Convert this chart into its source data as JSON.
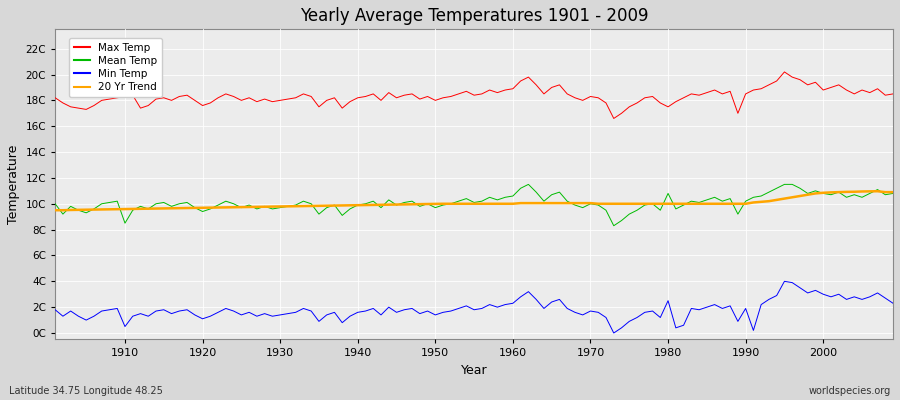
{
  "title": "Yearly Average Temperatures 1901 - 2009",
  "xlabel": "Year",
  "ylabel": "Temperature",
  "x_start": 1901,
  "x_end": 2009,
  "ytick_positions": [
    0,
    2,
    4,
    6,
    8,
    10,
    12,
    14,
    16,
    18,
    20,
    22
  ],
  "ytick_labels": [
    "0C",
    "2C",
    "4C",
    "6C",
    "8C",
    "10C",
    "12C",
    "14C",
    "16C",
    "18C",
    "20C",
    "22C"
  ],
  "ylim": [
    -0.5,
    23.5
  ],
  "xlim": [
    1901,
    2009
  ],
  "xticks": [
    1910,
    1920,
    1930,
    1940,
    1950,
    1960,
    1970,
    1980,
    1990,
    2000
  ],
  "legend_labels": [
    "Max Temp",
    "Mean Temp",
    "Min Temp",
    "20 Yr Trend"
  ],
  "legend_colors": [
    "#ff0000",
    "#00bb00",
    "#0000ff",
    "#ffa500"
  ],
  "bg_color": "#d8d8d8",
  "plot_bg": "#ececec",
  "grid_color": "#ffffff",
  "subtitle_left": "Latitude 34.75 Longitude 48.25",
  "subtitle_right": "worldspecies.org",
  "max_temp": [
    18.2,
    17.8,
    17.5,
    17.4,
    17.3,
    17.6,
    18.0,
    18.1,
    18.2,
    18.3,
    18.4,
    17.4,
    17.6,
    18.1,
    18.2,
    18.0,
    18.3,
    18.4,
    18.0,
    17.6,
    17.8,
    18.2,
    18.5,
    18.3,
    18.0,
    18.2,
    17.9,
    18.1,
    17.9,
    18.0,
    18.1,
    18.2,
    18.5,
    18.3,
    17.5,
    18.0,
    18.2,
    17.4,
    17.9,
    18.2,
    18.3,
    18.5,
    18.0,
    18.6,
    18.2,
    18.4,
    18.5,
    18.1,
    18.3,
    18.0,
    18.2,
    18.3,
    18.5,
    18.7,
    18.4,
    18.5,
    18.8,
    18.6,
    18.8,
    18.9,
    19.5,
    19.8,
    19.2,
    18.5,
    19.0,
    19.2,
    18.5,
    18.2,
    18.0,
    18.3,
    18.2,
    17.8,
    16.6,
    17.0,
    17.5,
    17.8,
    18.2,
    18.3,
    17.8,
    17.5,
    17.9,
    18.2,
    18.5,
    18.4,
    18.6,
    18.8,
    18.5,
    18.7,
    17.0,
    18.5,
    18.8,
    18.9,
    19.2,
    19.5,
    20.2,
    19.8,
    19.6,
    19.2,
    19.4,
    18.8,
    19.0,
    19.2,
    18.8,
    18.5,
    18.8,
    18.6,
    18.9,
    18.4,
    18.5
  ],
  "mean_temp": [
    10.0,
    9.2,
    9.8,
    9.5,
    9.3,
    9.6,
    10.0,
    10.1,
    10.2,
    8.5,
    9.5,
    9.8,
    9.6,
    10.0,
    10.1,
    9.8,
    10.0,
    10.1,
    9.7,
    9.4,
    9.6,
    9.9,
    10.2,
    10.0,
    9.7,
    9.9,
    9.6,
    9.8,
    9.6,
    9.7,
    9.8,
    9.9,
    10.2,
    10.0,
    9.2,
    9.7,
    9.9,
    9.1,
    9.6,
    9.9,
    10.0,
    10.2,
    9.7,
    10.3,
    9.9,
    10.1,
    10.2,
    9.8,
    10.0,
    9.7,
    9.9,
    10.0,
    10.2,
    10.4,
    10.1,
    10.2,
    10.5,
    10.3,
    10.5,
    10.6,
    11.2,
    11.5,
    10.9,
    10.2,
    10.7,
    10.9,
    10.2,
    9.9,
    9.7,
    10.0,
    9.9,
    9.5,
    8.3,
    8.7,
    9.2,
    9.5,
    9.9,
    10.0,
    9.5,
    10.8,
    9.6,
    9.9,
    10.2,
    10.1,
    10.3,
    10.5,
    10.2,
    10.4,
    9.2,
    10.2,
    10.5,
    10.6,
    10.9,
    11.2,
    11.5,
    11.5,
    11.2,
    10.8,
    11.0,
    10.8,
    10.7,
    10.9,
    10.5,
    10.7,
    10.5,
    10.8,
    11.1,
    10.7,
    10.8
  ],
  "min_temp": [
    1.8,
    1.3,
    1.7,
    1.3,
    1.0,
    1.3,
    1.7,
    1.8,
    1.9,
    0.5,
    1.3,
    1.5,
    1.3,
    1.7,
    1.8,
    1.5,
    1.7,
    1.8,
    1.4,
    1.1,
    1.3,
    1.6,
    1.9,
    1.7,
    1.4,
    1.6,
    1.3,
    1.5,
    1.3,
    1.4,
    1.5,
    1.6,
    1.9,
    1.7,
    0.9,
    1.4,
    1.6,
    0.8,
    1.3,
    1.6,
    1.7,
    1.9,
    1.4,
    2.0,
    1.6,
    1.8,
    1.9,
    1.5,
    1.7,
    1.4,
    1.6,
    1.7,
    1.9,
    2.1,
    1.8,
    1.9,
    2.2,
    2.0,
    2.2,
    2.3,
    2.8,
    3.2,
    2.6,
    1.9,
    2.4,
    2.6,
    1.9,
    1.6,
    1.4,
    1.7,
    1.6,
    1.2,
    0.0,
    0.4,
    0.9,
    1.2,
    1.6,
    1.7,
    1.2,
    2.5,
    0.4,
    0.6,
    1.9,
    1.8,
    2.0,
    2.2,
    1.9,
    2.1,
    0.9,
    1.9,
    0.2,
    2.2,
    2.6,
    2.9,
    4.0,
    3.9,
    3.5,
    3.1,
    3.3,
    3.0,
    2.8,
    3.0,
    2.6,
    2.8,
    2.6,
    2.8,
    3.1,
    2.7,
    2.3
  ],
  "trend_temp": [
    9.5,
    9.5,
    9.52,
    9.53,
    9.54,
    9.55,
    9.56,
    9.57,
    9.58,
    9.59,
    9.6,
    9.61,
    9.62,
    9.63,
    9.64,
    9.65,
    9.66,
    9.67,
    9.68,
    9.69,
    9.7,
    9.71,
    9.72,
    9.73,
    9.74,
    9.75,
    9.76,
    9.77,
    9.78,
    9.79,
    9.8,
    9.81,
    9.82,
    9.83,
    9.84,
    9.85,
    9.86,
    9.87,
    9.88,
    9.89,
    9.9,
    9.91,
    9.92,
    9.93,
    9.94,
    9.95,
    9.96,
    9.97,
    9.98,
    9.99,
    10.0,
    10.0,
    10.0,
    10.0,
    10.0,
    10.0,
    10.0,
    10.0,
    10.0,
    10.0,
    10.05,
    10.05,
    10.05,
    10.05,
    10.05,
    10.05,
    10.05,
    10.05,
    10.05,
    10.05,
    10.0,
    10.0,
    10.0,
    10.0,
    10.0,
    10.0,
    10.0,
    10.0,
    10.0,
    10.0,
    10.0,
    10.0,
    10.0,
    10.0,
    10.0,
    10.0,
    10.0,
    10.0,
    10.0,
    10.0,
    10.1,
    10.15,
    10.2,
    10.3,
    10.4,
    10.5,
    10.6,
    10.7,
    10.8,
    10.85,
    10.88,
    10.9,
    10.92,
    10.93,
    10.95,
    10.96,
    10.97,
    10.9,
    10.9
  ]
}
